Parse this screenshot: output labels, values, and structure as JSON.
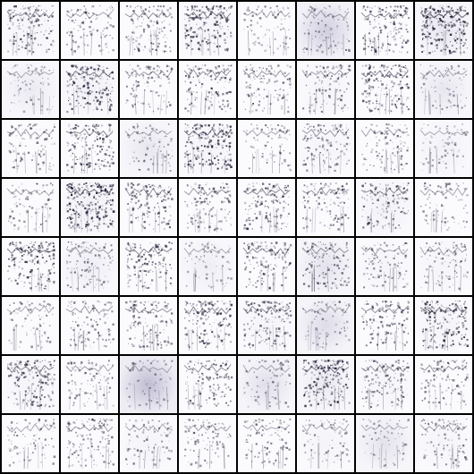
{
  "figure": {
    "rows": 8,
    "cols": 8,
    "tile_colors": {
      "background": "#fbfbfe",
      "ink": "#141028",
      "haze": "#bfbcd2",
      "separator": "#000000"
    },
    "tiles": [
      {
        "i": 0,
        "ink": 0.55,
        "haze": 0.1
      },
      {
        "i": 1,
        "ink": 0.3,
        "haze": 0.05
      },
      {
        "i": 2,
        "ink": 0.45,
        "haze": 0.05
      },
      {
        "i": 3,
        "ink": 0.65,
        "haze": 0.1
      },
      {
        "i": 4,
        "ink": 0.25,
        "haze": 0.05
      },
      {
        "i": 5,
        "ink": 0.3,
        "haze": 0.65
      },
      {
        "i": 6,
        "ink": 0.55,
        "haze": 0.05
      },
      {
        "i": 7,
        "ink": 0.9,
        "haze": 0.3
      },
      {
        "i": 8,
        "ink": 0.2,
        "haze": 0.25
      },
      {
        "i": 9,
        "ink": 0.7,
        "haze": 0.15
      },
      {
        "i": 10,
        "ink": 0.35,
        "haze": 0.05
      },
      {
        "i": 11,
        "ink": 0.45,
        "haze": 0.05
      },
      {
        "i": 12,
        "ink": 0.4,
        "haze": 0.05
      },
      {
        "i": 13,
        "ink": 0.35,
        "haze": 0.1
      },
      {
        "i": 14,
        "ink": 0.65,
        "haze": 0.05
      },
      {
        "i": 15,
        "ink": 0.2,
        "haze": 0.3
      },
      {
        "i": 16,
        "ink": 0.3,
        "haze": 0.05
      },
      {
        "i": 17,
        "ink": 0.6,
        "haze": 0.05
      },
      {
        "i": 18,
        "ink": 0.2,
        "haze": 0.3
      },
      {
        "i": 19,
        "ink": 0.75,
        "haze": 0.1
      },
      {
        "i": 20,
        "ink": 0.25,
        "haze": 0.05
      },
      {
        "i": 21,
        "ink": 0.4,
        "haze": 0.1
      },
      {
        "i": 22,
        "ink": 0.3,
        "haze": 0.05
      },
      {
        "i": 23,
        "ink": 0.2,
        "haze": 0.15
      },
      {
        "i": 24,
        "ink": 0.25,
        "haze": 0.05
      },
      {
        "i": 25,
        "ink": 0.85,
        "haze": 0.15
      },
      {
        "i": 26,
        "ink": 0.45,
        "haze": 0.05
      },
      {
        "i": 27,
        "ink": 0.4,
        "haze": 0.05
      },
      {
        "i": 28,
        "ink": 0.55,
        "haze": 0.05
      },
      {
        "i": 29,
        "ink": 0.4,
        "haze": 0.05
      },
      {
        "i": 30,
        "ink": 0.5,
        "haze": 0.15
      },
      {
        "i": 31,
        "ink": 0.25,
        "haze": 0.05
      },
      {
        "i": 32,
        "ink": 0.65,
        "haze": 0.05
      },
      {
        "i": 33,
        "ink": 0.35,
        "haze": 0.2
      },
      {
        "i": 34,
        "ink": 0.55,
        "haze": 0.05
      },
      {
        "i": 35,
        "ink": 0.2,
        "haze": 0.2
      },
      {
        "i": 36,
        "ink": 0.5,
        "haze": 0.05
      },
      {
        "i": 37,
        "ink": 0.45,
        "haze": 0.35
      },
      {
        "i": 38,
        "ink": 0.3,
        "haze": 0.1
      },
      {
        "i": 39,
        "ink": 0.3,
        "haze": 0.1
      },
      {
        "i": 40,
        "ink": 0.2,
        "haze": 0.05
      },
      {
        "i": 41,
        "ink": 0.35,
        "haze": 0.05
      },
      {
        "i": 42,
        "ink": 0.45,
        "haze": 0.05
      },
      {
        "i": 43,
        "ink": 0.6,
        "haze": 0.05
      },
      {
        "i": 44,
        "ink": 0.55,
        "haze": 0.1
      },
      {
        "i": 45,
        "ink": 0.2,
        "haze": 0.45
      },
      {
        "i": 46,
        "ink": 0.45,
        "haze": 0.05
      },
      {
        "i": 47,
        "ink": 0.7,
        "haze": 0.1
      },
      {
        "i": 48,
        "ink": 0.6,
        "haze": 0.1
      },
      {
        "i": 49,
        "ink": 0.3,
        "haze": 0.05
      },
      {
        "i": 50,
        "ink": 0.15,
        "haze": 0.9
      },
      {
        "i": 51,
        "ink": 0.45,
        "haze": 0.05
      },
      {
        "i": 52,
        "ink": 0.2,
        "haze": 0.4
      },
      {
        "i": 53,
        "ink": 0.75,
        "haze": 0.25
      },
      {
        "i": 54,
        "ink": 0.45,
        "haze": 0.1
      },
      {
        "i": 55,
        "ink": 0.4,
        "haze": 0.05
      },
      {
        "i": 56,
        "ink": 0.25,
        "haze": 0.05
      },
      {
        "i": 57,
        "ink": 0.4,
        "haze": 0.05
      },
      {
        "i": 58,
        "ink": 0.25,
        "haze": 0.1
      },
      {
        "i": 59,
        "ink": 0.3,
        "haze": 0.05
      },
      {
        "i": 60,
        "ink": 0.3,
        "haze": 0.05
      },
      {
        "i": 61,
        "ink": 0.2,
        "haze": 0.1
      },
      {
        "i": 62,
        "ink": 0.15,
        "haze": 0.35
      },
      {
        "i": 63,
        "ink": 0.3,
        "haze": 0.1
      }
    ]
  }
}
